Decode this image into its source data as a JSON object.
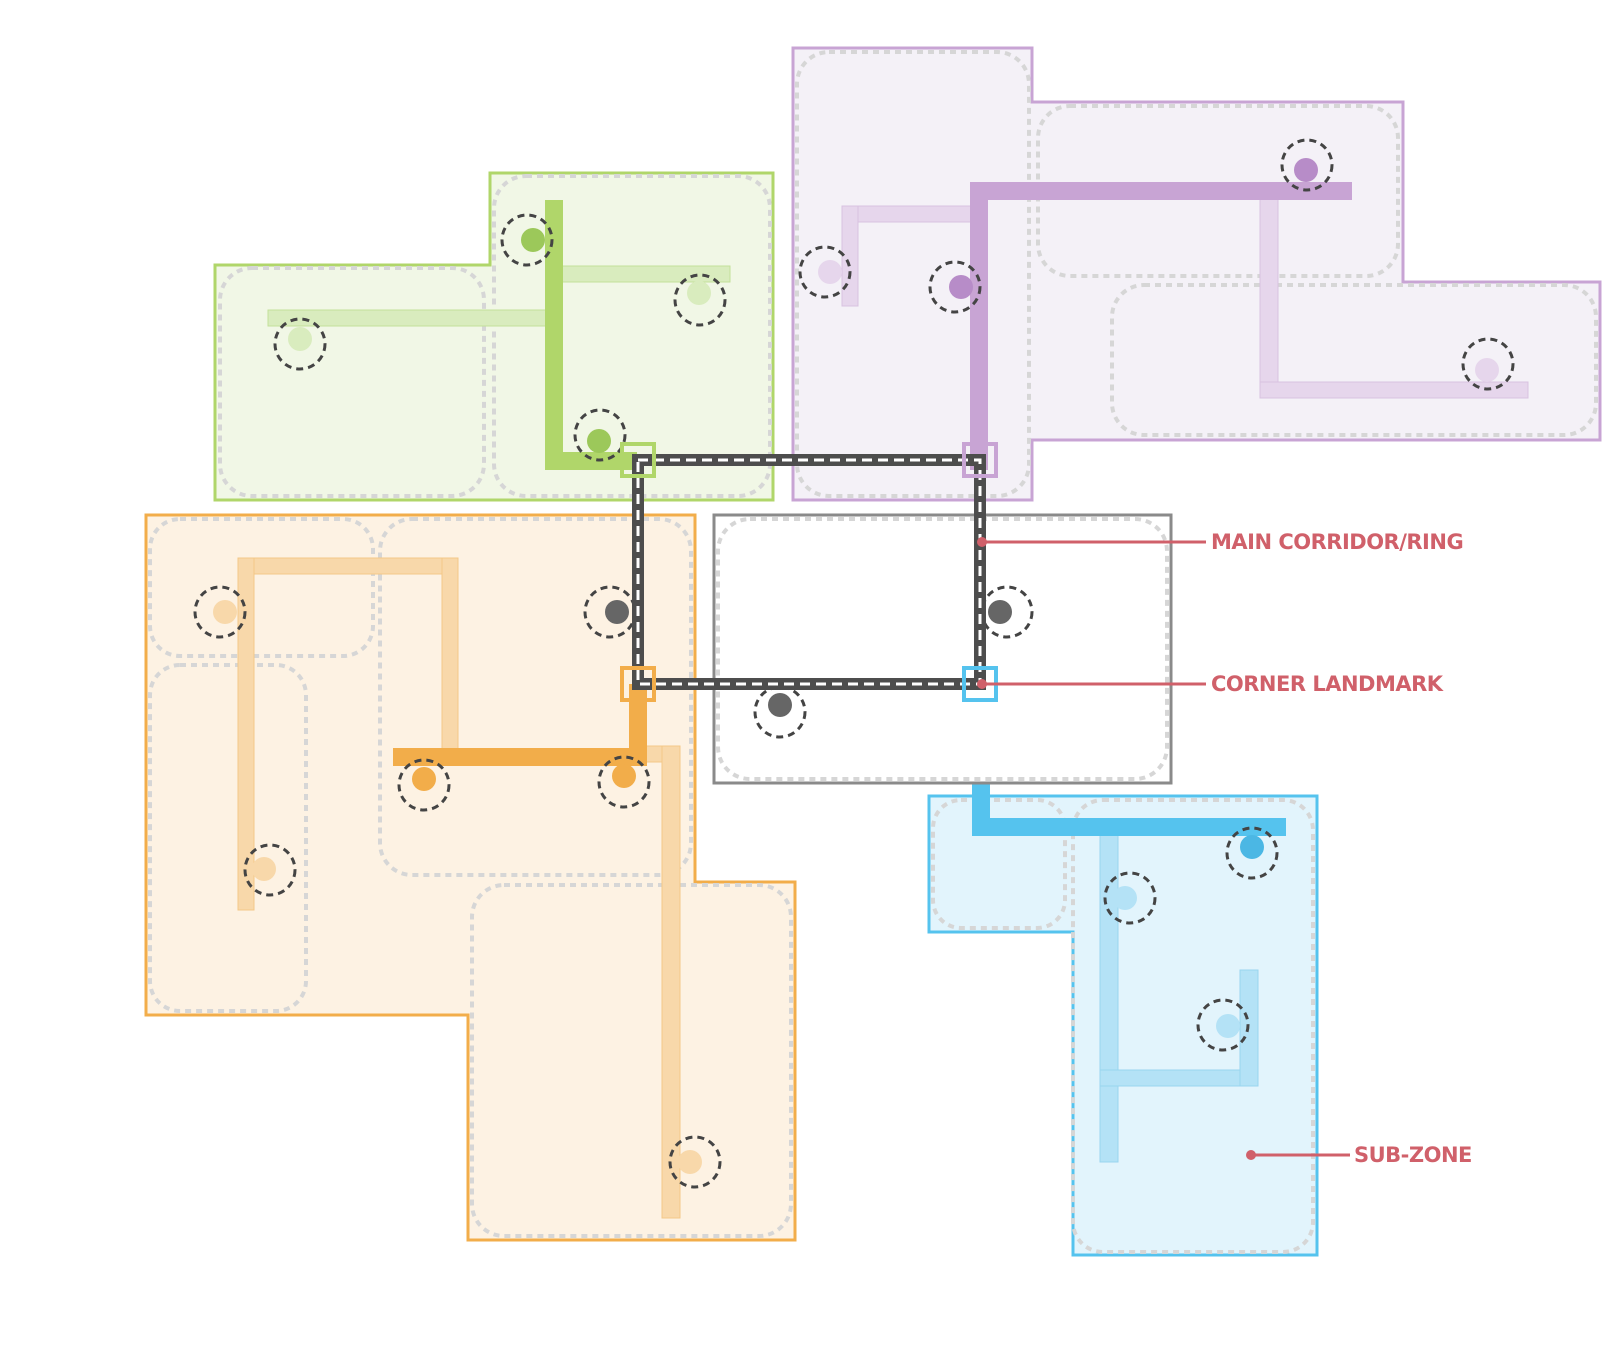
{
  "annotations": {
    "main_corridor": "MAIN CORRIDOR/RING",
    "corner_landmark": "CORNER LANDMARK",
    "sub_zone": "SUB-ZONE"
  },
  "colors": {
    "annotation": "#d0606a",
    "ring": "#4d4d4d",
    "ring_dash": "#ffffff",
    "subzone_outline": "#d6d6d6",
    "node_ring": "#444444",
    "green": "#b0d66a",
    "green_fill": "#f1f7e6",
    "green_light": "#d9ecbe",
    "purple": "#c8a4d4",
    "purple_fill": "#f4f1f7",
    "purple_light": "#e6d6ec",
    "orange": "#f2ad4a",
    "orange_fill": "#fdf2e3",
    "orange_light": "#f8d8aa",
    "blue": "#55c3ee",
    "blue_fill": "#e2f4fc",
    "blue_light": "#b4e2f6",
    "gray": "#8a8a8a",
    "gray_dot": "#666666"
  },
  "icons": {
    "node": "dashed-circle-node-icon",
    "landmark": "square-landmark-icon"
  }
}
